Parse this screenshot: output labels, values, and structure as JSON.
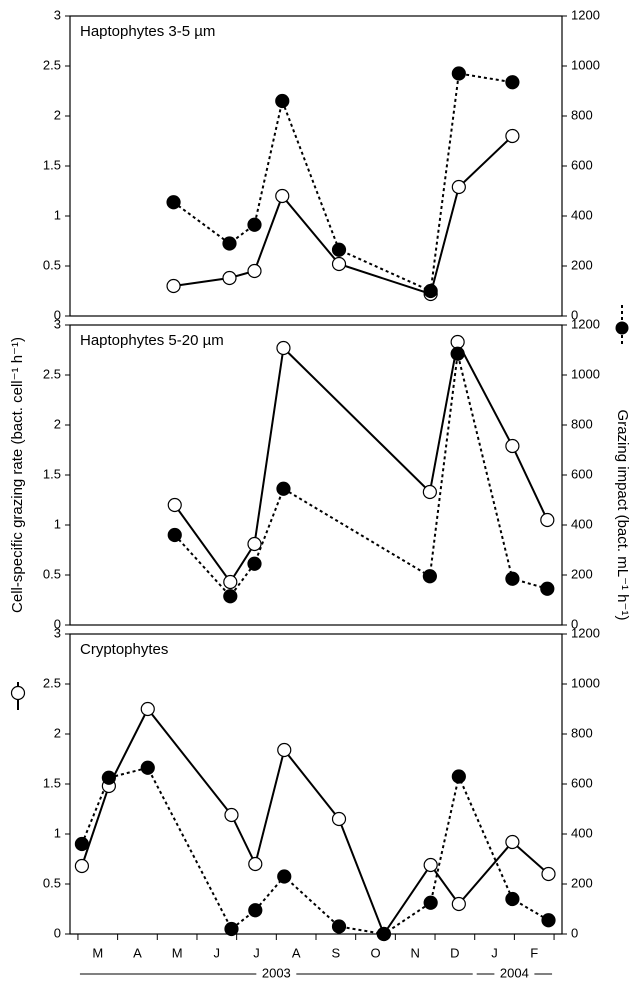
{
  "chart_data": [
    {
      "type": "line",
      "title": "Haptophytes 3-5 µm",
      "x": [
        2.41,
        3.82,
        4.45,
        5.15,
        6.58,
        8.89,
        9.6,
        10.95
      ],
      "series": [
        {
          "color": "#000000",
          "marker_fill": "#ffffff",
          "style": "solid",
          "values": [
            0.3,
            0.38,
            0.45,
            1.2,
            0.52,
            0.22,
            1.29,
            1.8
          ]
        },
        {
          "color": "#000000",
          "marker_fill": "#000000",
          "style": "dotted",
          "axis": "y2",
          "values": [
            455,
            290,
            365,
            860,
            265,
            100,
            970,
            935
          ]
        }
      ],
      "xlim": [
        -0.2,
        12.2
      ],
      "ylim": [
        0,
        3
      ],
      "yticks": [
        0,
        0.5,
        1,
        1.5,
        2,
        2.5,
        3
      ],
      "y2lim": [
        0,
        1200
      ],
      "y2ticks": [
        0,
        200,
        400,
        600,
        800,
        1000,
        1200
      ]
    },
    {
      "type": "line",
      "title": "Haptophytes 5-20 µm",
      "ylabel": "Cell-specific grazing rate (bact. cell⁻¹ h⁻¹)",
      "y2label": "Grazing impact (bact. mL⁻¹ h⁻¹)",
      "x": [
        2.44,
        3.84,
        4.45,
        5.18,
        8.87,
        9.57,
        10.95,
        11.83
      ],
      "series": [
        {
          "color": "#000000",
          "marker_fill": "#ffffff",
          "style": "solid",
          "values": [
            1.2,
            0.43,
            0.81,
            2.77,
            1.33,
            2.83,
            1.79,
            1.05
          ]
        },
        {
          "color": "#000000",
          "marker_fill": "#000000",
          "style": "dotted",
          "axis": "y2",
          "values": [
            360,
            115,
            245,
            545,
            195,
            1085,
            185,
            145
          ]
        }
      ],
      "xlim": [
        -0.2,
        12.2
      ],
      "ylim": [
        0,
        3
      ],
      "yticks": [
        0,
        0.5,
        1,
        1.5,
        2,
        2.5,
        3
      ],
      "y2lim": [
        0,
        1200
      ],
      "y2ticks": [
        0,
        200,
        400,
        600,
        800,
        1000,
        1200
      ]
    },
    {
      "type": "line",
      "title": "Cryptophytes",
      "x": [
        0.1,
        0.78,
        1.76,
        3.87,
        4.47,
        5.2,
        6.58,
        7.71,
        8.89,
        9.6,
        10.95,
        11.86
      ],
      "series": [
        {
          "color": "#000000",
          "marker_fill": "#ffffff",
          "style": "solid",
          "values": [
            0.68,
            1.48,
            2.25,
            1.19,
            0.7,
            1.84,
            1.15,
            0,
            0.69,
            0.3,
            0.92,
            0.6
          ]
        },
        {
          "color": "#000000",
          "marker_fill": "#000000",
          "style": "dotted",
          "axis": "y2",
          "values": [
            360,
            625,
            665,
            20,
            95,
            230,
            30,
            0,
            125,
            630,
            140,
            55
          ]
        }
      ],
      "xlim": [
        -0.2,
        12.2
      ],
      "ylim": [
        0,
        3
      ],
      "yticks": [
        0,
        0.5,
        1,
        1.5,
        2,
        2.5,
        3
      ],
      "y2lim": [
        0,
        1200
      ],
      "y2ticks": [
        0,
        200,
        400,
        600,
        800,
        1000,
        1200
      ],
      "minor_xticks": [
        0,
        1,
        2,
        3,
        4,
        5,
        6,
        7,
        8,
        9,
        10,
        11,
        12
      ],
      "xticks": [
        {
          "value": 0.5,
          "label": "M"
        },
        {
          "value": 1.5,
          "label": "A"
        },
        {
          "value": 2.5,
          "label": "M"
        },
        {
          "value": 3.5,
          "label": "J"
        },
        {
          "value": 4.5,
          "label": "J"
        },
        {
          "value": 5.5,
          "label": "A"
        },
        {
          "value": 6.5,
          "label": "S"
        },
        {
          "value": 7.5,
          "label": "O"
        },
        {
          "value": 8.5,
          "label": "N"
        },
        {
          "value": 9.5,
          "label": "D"
        },
        {
          "value": 10.5,
          "label": "J"
        },
        {
          "value": 11.5,
          "label": "F"
        }
      ],
      "year_labels": [
        {
          "label": "2003",
          "start": 0,
          "end": 10
        },
        {
          "label": "2004",
          "start": 10,
          "end": 12
        }
      ]
    }
  ]
}
